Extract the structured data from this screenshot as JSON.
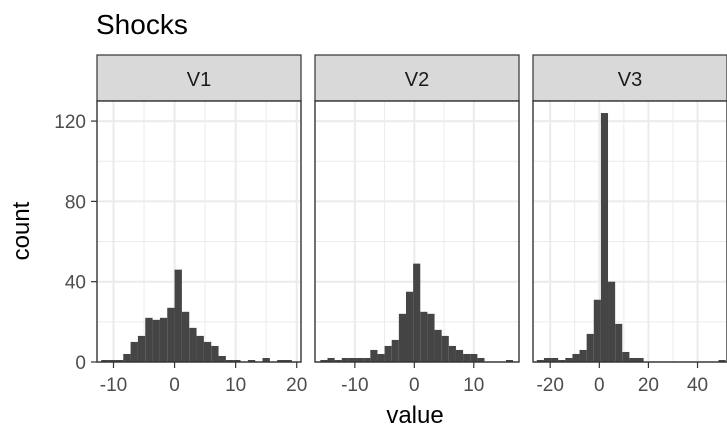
{
  "chart_data": {
    "type": "bar",
    "title": "Shocks",
    "xlabel": "value",
    "ylabel": "count",
    "ylim": [
      0,
      130
    ],
    "yticks": [
      0,
      40,
      80,
      120
    ],
    "y_minor_ticks": [
      20,
      60,
      100
    ],
    "grid": true,
    "colors": {
      "bar": "#454545",
      "strip": "#d9d9d9",
      "grid": "#ebebeb",
      "frame": "#333333"
    },
    "panels": [
      {
        "name": "V1",
        "xlim": [
          -12.7,
          20.7
        ],
        "xticks": [
          -10,
          0,
          10,
          20
        ],
        "bin_width": 1.2,
        "bins": [
          {
            "x": -11.4,
            "count": 1
          },
          {
            "x": -10.2,
            "count": 1
          },
          {
            "x": -9.0,
            "count": 1
          },
          {
            "x": -7.8,
            "count": 4
          },
          {
            "x": -6.6,
            "count": 10
          },
          {
            "x": -5.4,
            "count": 13
          },
          {
            "x": -4.2,
            "count": 22
          },
          {
            "x": -3.0,
            "count": 21
          },
          {
            "x": -1.8,
            "count": 22
          },
          {
            "x": -0.6,
            "count": 27
          },
          {
            "x": 0.6,
            "count": 46
          },
          {
            "x": 1.8,
            "count": 25
          },
          {
            "x": 3.0,
            "count": 17
          },
          {
            "x": 4.2,
            "count": 13
          },
          {
            "x": 5.4,
            "count": 10
          },
          {
            "x": 6.6,
            "count": 8
          },
          {
            "x": 7.8,
            "count": 3
          },
          {
            "x": 9.0,
            "count": 1
          },
          {
            "x": 10.2,
            "count": 1
          },
          {
            "x": 12.6,
            "count": 1
          },
          {
            "x": 15.0,
            "count": 2
          },
          {
            "x": 17.4,
            "count": 1
          },
          {
            "x": 18.6,
            "count": 1
          }
        ]
      },
      {
        "name": "V2",
        "xlim": [
          -16.7,
          17.6
        ],
        "xticks": [
          -10,
          0,
          10
        ],
        "bin_width": 1.2,
        "bins": [
          {
            "x": -15.2,
            "count": 1
          },
          {
            "x": -14.0,
            "count": 2
          },
          {
            "x": -12.8,
            "count": 1
          },
          {
            "x": -11.6,
            "count": 2
          },
          {
            "x": -10.4,
            "count": 2
          },
          {
            "x": -9.2,
            "count": 2
          },
          {
            "x": -8.0,
            "count": 2
          },
          {
            "x": -6.8,
            "count": 6
          },
          {
            "x": -5.6,
            "count": 4
          },
          {
            "x": -4.4,
            "count": 8
          },
          {
            "x": -3.2,
            "count": 11
          },
          {
            "x": -2.0,
            "count": 24
          },
          {
            "x": -0.8,
            "count": 35
          },
          {
            "x": 0.4,
            "count": 49
          },
          {
            "x": 1.6,
            "count": 25
          },
          {
            "x": 2.8,
            "count": 24
          },
          {
            "x": 4.0,
            "count": 16
          },
          {
            "x": 5.2,
            "count": 13
          },
          {
            "x": 6.4,
            "count": 8
          },
          {
            "x": 7.6,
            "count": 6
          },
          {
            "x": 8.8,
            "count": 4
          },
          {
            "x": 10.0,
            "count": 4
          },
          {
            "x": 11.2,
            "count": 2
          },
          {
            "x": 16.0,
            "count": 1
          }
        ]
      },
      {
        "name": "V3",
        "xlim": [
          -27,
          52
        ],
        "xticks": [
          -20,
          0,
          20,
          40
        ],
        "bin_width": 2.9,
        "bins": [
          {
            "x": -24.0,
            "count": 1
          },
          {
            "x": -21.1,
            "count": 2
          },
          {
            "x": -18.2,
            "count": 2
          },
          {
            "x": -15.3,
            "count": 1
          },
          {
            "x": -12.4,
            "count": 2
          },
          {
            "x": -9.5,
            "count": 4
          },
          {
            "x": -6.6,
            "count": 6
          },
          {
            "x": -3.7,
            "count": 14
          },
          {
            "x": -0.8,
            "count": 31
          },
          {
            "x": 2.1,
            "count": 124
          },
          {
            "x": 5.0,
            "count": 40
          },
          {
            "x": 7.9,
            "count": 19
          },
          {
            "x": 10.8,
            "count": 5
          },
          {
            "x": 13.7,
            "count": 2
          },
          {
            "x": 16.6,
            "count": 2
          },
          {
            "x": 50.0,
            "count": 1
          }
        ]
      }
    ]
  }
}
